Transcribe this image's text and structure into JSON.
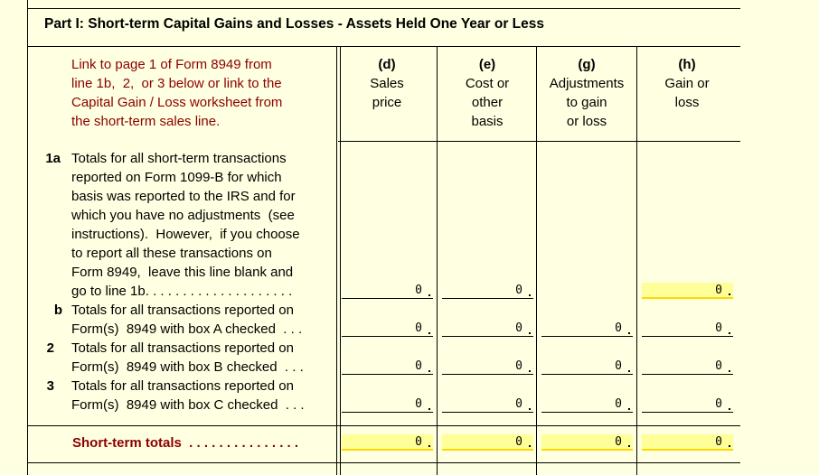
{
  "part": {
    "title": "Part I:  Short-term Capital Gains and Losses - Assets Held One Year or Less"
  },
  "link_text": "Link to page 1 of Form 8949 from\nline 1b,  2,  or 3 below or link to the\nCapital Gain / Loss worksheet from\nthe short-term sales line.",
  "columns": [
    {
      "letter": "(d)",
      "label": "Sales\nprice"
    },
    {
      "letter": "(e)",
      "label": "Cost or\nother\nbasis"
    },
    {
      "letter": "(g)",
      "label": "Adjustments\nto gain\nor loss"
    },
    {
      "letter": "(h)",
      "label": "Gain or\nloss"
    }
  ],
  "lines": [
    {
      "num": "1a",
      "desc": "Totals for all short-term transactions\nreported on Form 1099-B for which\nbasis was reported to the IRS and for\nwhich you have no adjustments  (see\ninstructions).  However,  if you choose\nto report all these transactions on\nForm 8949,  leave this line blank and\ngo to line 1b. . . . . . . . . . . . . . . . . . . .",
      "values": {
        "d": "0",
        "e": "0",
        "h": "0"
      }
    },
    {
      "num": "b",
      "desc": "Totals for all transactions reported on\nForm(s)  8949 with box A checked  . . .",
      "values": {
        "d": "0",
        "e": "0",
        "g": "0",
        "h": "0"
      }
    },
    {
      "num": "2",
      "desc": "Totals for all transactions reported on\nForm(s)  8949 with box B checked  . . .",
      "values": {
        "d": "0",
        "e": "0",
        "g": "0",
        "h": "0"
      }
    },
    {
      "num": "3",
      "desc": "Totals for all transactions reported on\nForm(s)  8949 with box C checked  . . .",
      "values": {
        "d": "0",
        "e": "0",
        "g": "0",
        "h": "0"
      }
    }
  ],
  "totals": {
    "label": "Short-term totals  . . . . . . . . . . . . . . .",
    "values": {
      "d": "0",
      "e": "0",
      "g": "0",
      "h": "0"
    }
  },
  "colors": {
    "background": "#ffffe1",
    "link": "#8b0000",
    "field_highlight": "#ffff99",
    "field_underline": "#ffd700"
  }
}
